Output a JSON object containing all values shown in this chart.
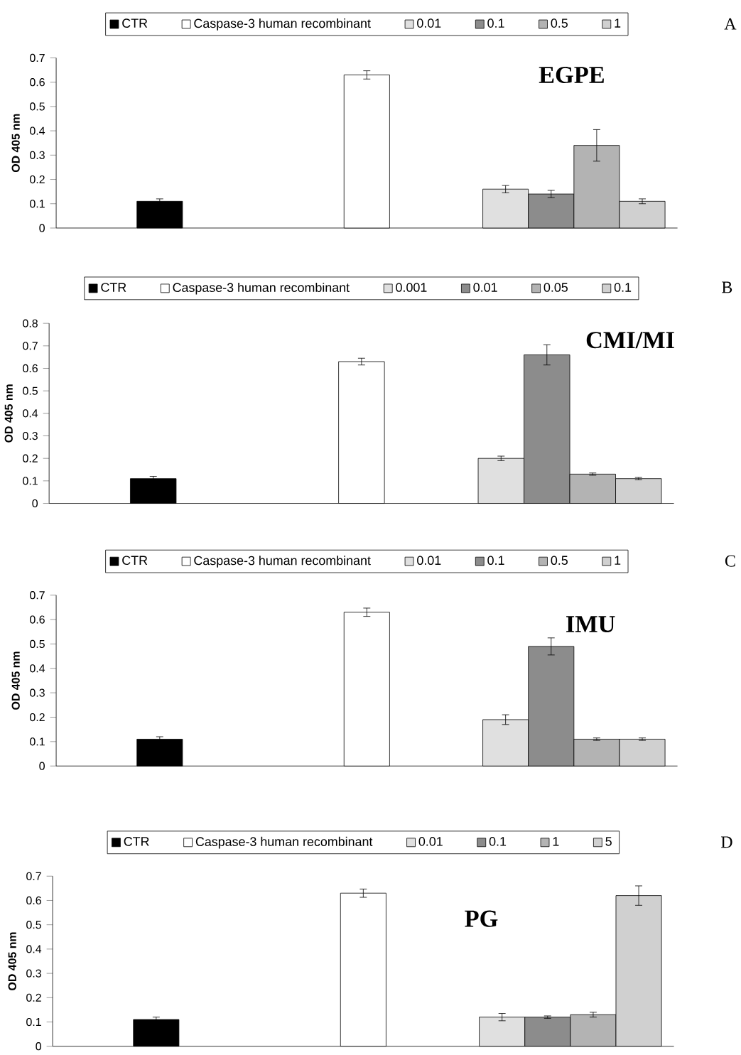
{
  "chart_data": [
    {
      "type": "bar",
      "title": "EGPE",
      "ylabel": "OD 405 nm",
      "annotations": [
        "A"
      ],
      "categories": [
        null,
        null,
        null
      ],
      "legend": "top",
      "tick_labels": "y",
      "ylim": [
        0,
        0.7
      ],
      "yticks": [
        0,
        0.1,
        0.2,
        0.3,
        0.4,
        0.5,
        0.6,
        0.7
      ],
      "series": [
        {
          "name": "CTR",
          "color": "#000000",
          "values": [
            0.11,
            null,
            null
          ],
          "errors": [
            0.01,
            null,
            null
          ]
        },
        {
          "name": "Caspase-3 human recombinant",
          "color": "#ffffff",
          "values": [
            null,
            0.63,
            null
          ],
          "errors": [
            null,
            0.017,
            null
          ]
        },
        {
          "name": "0.01",
          "color": "#e0e0e0",
          "values": [
            null,
            null,
            0.16
          ],
          "errors": [
            null,
            null,
            0.015
          ]
        },
        {
          "name": "0.1",
          "color": "#8c8c8c",
          "values": [
            null,
            null,
            0.14
          ],
          "errors": [
            null,
            null,
            0.015
          ]
        },
        {
          "name": "0.5",
          "color": "#b3b3b3",
          "values": [
            null,
            null,
            0.34
          ],
          "errors": [
            null,
            null,
            0.065
          ]
        },
        {
          "name": "1",
          "color": "#d0d0d0",
          "values": [
            null,
            null,
            0.11
          ],
          "errors": [
            null,
            null,
            0.01
          ]
        }
      ]
    },
    {
      "type": "bar",
      "title": "CMI/MI",
      "ylabel": "OD 405 nm",
      "annotations": [
        "B"
      ],
      "categories": [
        null,
        null,
        null
      ],
      "legend": "top",
      "tick_labels": "y",
      "ylim": [
        0,
        0.8
      ],
      "yticks": [
        0,
        0.1,
        0.2,
        0.3,
        0.4,
        0.5,
        0.6,
        0.7,
        0.8
      ],
      "series": [
        {
          "name": "CTR",
          "color": "#000000",
          "values": [
            0.11,
            null,
            null
          ],
          "errors": [
            0.01,
            null,
            null
          ]
        },
        {
          "name": "Caspase-3 human recombinant",
          "color": "#ffffff",
          "values": [
            null,
            0.63,
            null
          ],
          "errors": [
            null,
            0.015,
            null
          ]
        },
        {
          "name": "0.001",
          "color": "#e0e0e0",
          "values": [
            null,
            null,
            0.2
          ],
          "errors": [
            null,
            null,
            0.01
          ]
        },
        {
          "name": "0.01",
          "color": "#8c8c8c",
          "values": [
            null,
            null,
            0.66
          ],
          "errors": [
            null,
            null,
            0.045
          ]
        },
        {
          "name": "0.05",
          "color": "#b3b3b3",
          "values": [
            null,
            null,
            0.13
          ],
          "errors": [
            null,
            null,
            0.005
          ]
        },
        {
          "name": "0.1",
          "color": "#d0d0d0",
          "values": [
            null,
            null,
            0.11
          ],
          "errors": [
            null,
            null,
            0.005
          ]
        }
      ]
    },
    {
      "type": "bar",
      "title": "IMU",
      "ylabel": "OD 405 nm",
      "annotations": [
        "C"
      ],
      "categories": [
        null,
        null,
        null
      ],
      "legend": "top",
      "tick_labels": "y",
      "ylim": [
        0,
        0.7
      ],
      "yticks": [
        0,
        0.1,
        0.2,
        0.3,
        0.4,
        0.5,
        0.6,
        0.7
      ],
      "series": [
        {
          "name": "CTR",
          "color": "#000000",
          "values": [
            0.11,
            null,
            null
          ],
          "errors": [
            0.01,
            null,
            null
          ]
        },
        {
          "name": "Caspase-3 human recombinant",
          "color": "#ffffff",
          "values": [
            null,
            0.63,
            null
          ],
          "errors": [
            null,
            0.017,
            null
          ]
        },
        {
          "name": "0.01",
          "color": "#e0e0e0",
          "values": [
            null,
            null,
            0.19
          ],
          "errors": [
            null,
            null,
            0.02
          ]
        },
        {
          "name": "0.1",
          "color": "#8c8c8c",
          "values": [
            null,
            null,
            0.49
          ],
          "errors": [
            null,
            null,
            0.035
          ]
        },
        {
          "name": "0.5",
          "color": "#b3b3b3",
          "values": [
            null,
            null,
            0.11
          ],
          "errors": [
            null,
            null,
            0.005
          ]
        },
        {
          "name": "1",
          "color": "#d0d0d0",
          "values": [
            null,
            null,
            0.11
          ],
          "errors": [
            null,
            null,
            0.005
          ]
        }
      ]
    },
    {
      "type": "bar",
      "title": "PG",
      "ylabel": "OD 405 nm",
      "annotations": [
        "D"
      ],
      "categories": [
        null,
        null,
        null
      ],
      "legend": "top",
      "tick_labels": "y",
      "ylim": [
        0,
        0.7
      ],
      "yticks": [
        0,
        0.1,
        0.2,
        0.3,
        0.4,
        0.5,
        0.6,
        0.7
      ],
      "series": [
        {
          "name": "CTR",
          "color": "#000000",
          "values": [
            0.11,
            null,
            null
          ],
          "errors": [
            0.01,
            null,
            null
          ]
        },
        {
          "name": "Caspase-3 human recombinant",
          "color": "#ffffff",
          "values": [
            null,
            0.63,
            null
          ],
          "errors": [
            null,
            0.017,
            null
          ]
        },
        {
          "name": "0.01",
          "color": "#e0e0e0",
          "values": [
            null,
            null,
            0.12
          ],
          "errors": [
            null,
            null,
            0.015
          ]
        },
        {
          "name": "0.1",
          "color": "#8c8c8c",
          "values": [
            null,
            null,
            0.12
          ],
          "errors": [
            null,
            null,
            0.005
          ]
        },
        {
          "name": "1",
          "color": "#b3b3b3",
          "values": [
            null,
            null,
            0.13
          ],
          "errors": [
            null,
            null,
            0.01
          ]
        },
        {
          "name": "5",
          "color": "#d0d0d0",
          "values": [
            null,
            null,
            0.62
          ],
          "errors": [
            null,
            null,
            0.04
          ]
        }
      ]
    }
  ]
}
